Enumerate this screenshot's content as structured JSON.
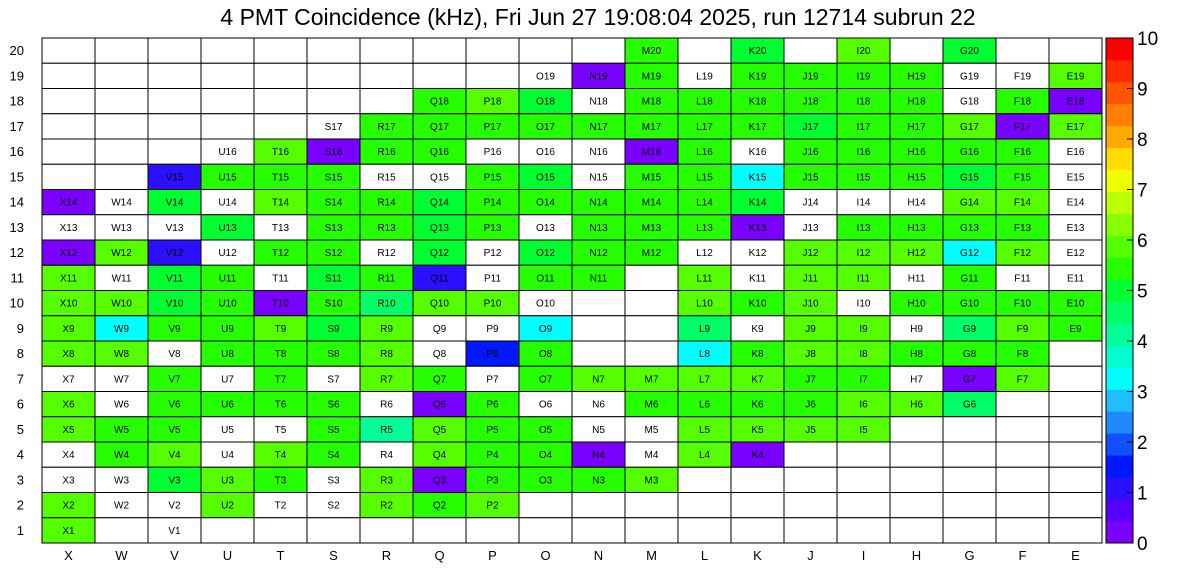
{
  "title": "4 PMT Coincidence (kHz), Fri Jun 27 19:08:04 2025, run 12714 subrun 22",
  "chart_data": {
    "type": "heatmap",
    "title": "4 PMT Coincidence (kHz), Fri Jun 27 19:08:04 2025, run 12714 subrun 22",
    "columns": [
      "X",
      "W",
      "V",
      "U",
      "T",
      "S",
      "R",
      "Q",
      "P",
      "O",
      "N",
      "M",
      "L",
      "K",
      "J",
      "I",
      "H",
      "G",
      "F",
      "E"
    ],
    "rows": [
      20,
      19,
      18,
      17,
      16,
      15,
      14,
      13,
      12,
      11,
      10,
      9,
      8,
      7,
      6,
      5,
      4,
      3,
      2,
      1
    ],
    "zlim": [
      0,
      10
    ],
    "palette_ticks": [
      "0",
      "1",
      "2",
      "3",
      "4",
      "5",
      "6",
      "7",
      "8",
      "9",
      "10"
    ],
    "palette": [
      "#7a00ff",
      "#5500ff",
      "#2a10ff",
      "#0018ff",
      "#1050ff",
      "#1f8aff",
      "#1fbfff",
      "#00ffff",
      "#00ffcc",
      "#00ff99",
      "#00ff66",
      "#00ff30",
      "#26ff00",
      "#55ff00",
      "#88ff00",
      "#bbff00",
      "#eeff00",
      "#ffdd00",
      "#ffaa00",
      "#ff8000",
      "#ff5500",
      "#ff2a00",
      "#ff0000"
    ],
    "grid": [
      [
        "",
        "",
        "",
        "",
        "",
        "",
        "",
        "",
        "",
        "",
        "",
        "M20=5.5",
        "",
        "K20=4.8",
        "",
        "I20=5.7",
        "",
        "G20=4.9",
        "",
        ""
      ],
      [
        "",
        "",
        "",
        "",
        "",
        "",
        "",
        "",
        "",
        "O19",
        "N19=0.1",
        "M19=5.6",
        "L19",
        "K19=5.6",
        "J19=5.5",
        "I19=5.6",
        "H19=5.6",
        "G19",
        "F19",
        "E19=5.7"
      ],
      [
        "",
        "",
        "",
        "",
        "",
        "",
        "",
        "Q18=5.6",
        "P18=5.7",
        "O18=5.0",
        "N18",
        "M18=5.6",
        "L18=5.6",
        "K18=5.6",
        "J18=5.3",
        "I18=5.5",
        "H18=5.5",
        "G18",
        "F18=5.6",
        "E18=0.1"
      ],
      [
        "",
        "",
        "",
        "",
        "",
        "S17",
        "R17=5.6",
        "Q17=5.4",
        "P17=5.5",
        "O17=5.5",
        "N17=5.3",
        "M17=5.6",
        "L17=5.6",
        "K17=5.6",
        "J17=4.9",
        "I17=5.3",
        "H17=5.6",
        "G17=5.9",
        "F17=0.1",
        "E17=5.8"
      ],
      [
        "",
        "",
        "",
        "U16",
        "T16=5.8",
        "S16=0.1",
        "R16=5.6",
        "Q16=5.5",
        "P16",
        "O16",
        "N16",
        "M16=0.1",
        "L16=5.6",
        "K16",
        "J16=5.5",
        "I16=5.4",
        "H16=5.5",
        "G16=5.5",
        "F16=5.4",
        "E16"
      ],
      [
        "",
        "",
        "V15=1.3",
        "U15=5.3",
        "T15=5.6",
        "S15=5.4",
        "R15",
        "Q15",
        "P15=5.4",
        "O15=5.0",
        "N15",
        "M15=5.5",
        "L15=5.5",
        "K15=3.2",
        "J15=5.5",
        "I15=5.4",
        "H15=5.4",
        "G15=5.0",
        "F15=5.6",
        "E15"
      ],
      [
        "X14=0.1",
        "W14",
        "V14=5.2",
        "U14",
        "T14=5.7",
        "S14=5.4",
        "R14=5.6",
        "Q14=5.2",
        "P14=5.6",
        "O14=5.3",
        "N14=5.6",
        "M14=5.6",
        "L14=5.5",
        "K14=4.8",
        "J14",
        "I14",
        "H14",
        "G14=5.8",
        "F14=5.8",
        "E14"
      ],
      [
        "X13",
        "W13",
        "V13",
        "U13=5.1",
        "T13",
        "S13=5.4",
        "R13=5.5",
        "Q13=5.2",
        "P13=5.4",
        "O13",
        "N13=5.5",
        "M13=5.5",
        "L13=5.5",
        "K13=0.1",
        "J13",
        "I13=5.5",
        "H13=5.5",
        "G13=5.3",
        "F13=5.5",
        "E13"
      ],
      [
        "X12=0.1",
        "W12=5.9",
        "V12=1.3",
        "U12",
        "T12=5.3",
        "S12=5.4",
        "R12",
        "Q12=5.0",
        "P12",
        "O12=5.2",
        "N12=5.4",
        "M12=5.5",
        "L12",
        "K12",
        "J12=5.9",
        "I12=5.7",
        "H12=5.8",
        "G12=3.4",
        "F12=5.8",
        "E12"
      ],
      [
        "X11=5.9",
        "W11",
        "V11=5.1",
        "U11=5.5",
        "T11",
        "S11=5.1",
        "R11=5.4",
        "Q11=1.0",
        "P11",
        "O11=5.3",
        "N11=5.3",
        "",
        "L11=5.8",
        "K11",
        "J11=5.8",
        "I11=5.8",
        "H11",
        "G11=5.4",
        "F11",
        "E11"
      ],
      [
        "X10=5.8",
        "W10=5.8",
        "V10=5.0",
        "U10=5.6",
        "T10=0.1",
        "S10=5.3",
        "R10=4.4",
        "Q10=5.8",
        "P10=5.9",
        "O10",
        "",
        "",
        "L10=5.8",
        "K10=5.6",
        "J10=5.9",
        "I10",
        "H10=5.6",
        "G10=5.6",
        "F10=5.6",
        "E10=5.5"
      ],
      [
        "X9=5.8",
        "W9=3.4",
        "V9=5.3",
        "U9=5.6",
        "T9=5.7",
        "S9=5.0",
        "R9=5.8",
        "Q9",
        "P9",
        "O9=3.2",
        "",
        "",
        "L9=4.5",
        "K9",
        "J9=5.8",
        "I9=5.8",
        "H9",
        "G9=4.5",
        "F9=5.8",
        "E9=5.3"
      ],
      [
        "X8=5.7",
        "W8=5.8",
        "V8",
        "U8=5.5",
        "T8=5.5",
        "S8=5.6",
        "R8=5.8",
        "Q8",
        "P8=1.4",
        "O8=5.6",
        "",
        "",
        "L8=3.4",
        "K8=5.6",
        "J8=5.7",
        "I8=5.7",
        "H8=5.6",
        "G8=5.3",
        "F8=5.6",
        ""
      ],
      [
        "X7",
        "W7",
        "V7=5.3",
        "U7",
        "T7=5.4",
        "S7",
        "R7=5.7",
        "Q7=5.3",
        "P7",
        "O7=5.6",
        "N7=5.7",
        "M7=5.8",
        "L7=5.8",
        "K7=5.7",
        "J7=5.5",
        "I7=5.3",
        "H7",
        "G7=0.1",
        "F7=5.9",
        ""
      ],
      [
        "X6=5.7",
        "W6",
        "V6=5.5",
        "U6=5.3",
        "T6=5.4",
        "S6=5.4",
        "R6",
        "Q6=0.1",
        "P6=5.5",
        "O6",
        "N6",
        "M6=5.6",
        "L6=5.6",
        "K6=5.6",
        "J6=5.6",
        "I6=5.8",
        "H6=5.7",
        "G6=4.5",
        "",
        ""
      ],
      [
        "X5=5.7",
        "W5=5.5",
        "V5=5.6",
        "U5",
        "T5",
        "S5=5.6",
        "R5=4.2",
        "Q5=5.7",
        "P5=5.6",
        "O5=5.6",
        "N5",
        "M5",
        "L5=5.7",
        "K5=5.7",
        "J5=5.8",
        "I5=5.9",
        "",
        "",
        "",
        ""
      ],
      [
        "X4",
        "W4=5.6",
        "V4=5.7",
        "U4",
        "T4=5.7",
        "S4=5.6",
        "R4",
        "Q4=5.7",
        "P4=5.6",
        "O4=5.6",
        "N4=0.1",
        "M4",
        "L4=5.8",
        "K4=0.1",
        "",
        "",
        "",
        "",
        "",
        ""
      ],
      [
        "X3",
        "W3",
        "V3=5.0",
        "U3=5.9",
        "T3=5.6",
        "S3",
        "R3=5.7",
        "Q3=0.1",
        "P3=5.6",
        "O3=5.4",
        "N3=5.5",
        "M3=5.7",
        "",
        "",
        "",
        "",
        "",
        "",
        "",
        ""
      ],
      [
        "X2=5.7",
        "W2",
        "V2",
        "U2=5.8",
        "T2",
        "S2",
        "R2=5.7",
        "Q2=5.6",
        "P2=5.8",
        "",
        "",
        "",
        "",
        "",
        "",
        "",
        "",
        "",
        "",
        ""
      ],
      [
        "X1=5.8",
        "",
        "V1",
        "",
        "",
        "",
        "",
        "",
        "",
        "",
        "",
        "",
        "",
        "",
        "",
        "",
        "",
        "",
        "",
        ""
      ]
    ]
  }
}
